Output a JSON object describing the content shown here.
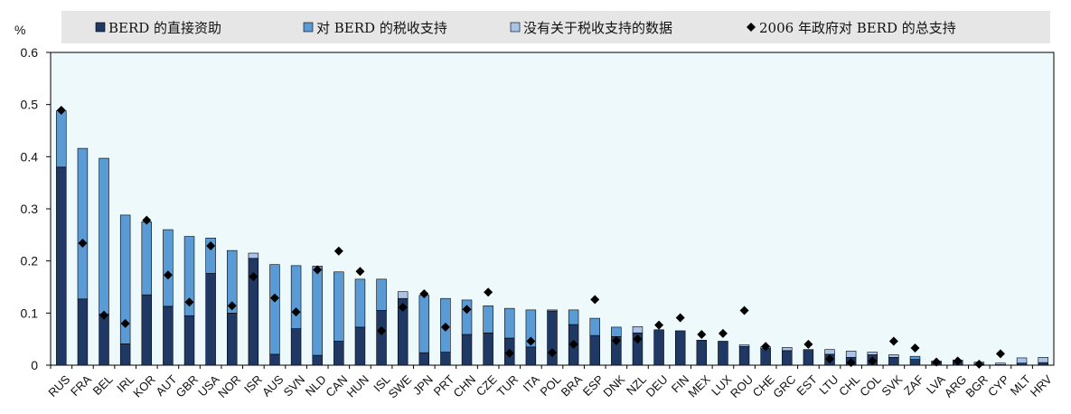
{
  "chart_data": {
    "type": "bar",
    "stacked": true,
    "y_unit_label": "%",
    "ylim": [
      0,
      0.6
    ],
    "yticks": [
      "0",
      "0.1",
      "0.2",
      "0.3",
      "0.4",
      "0.5",
      "0.6"
    ],
    "legend_position": "top",
    "grid": false,
    "colors": {
      "direct": "#1f3864",
      "tax": "#5b9bd5",
      "nodata": "#a9c4e8",
      "marker": "#000000",
      "plot_bg": "#eef9fb",
      "legend_bg": "#e6e6e6"
    },
    "legend": [
      {
        "key": "direct",
        "label": "BERD 的直接资助",
        "swatch": "bar"
      },
      {
        "key": "tax",
        "label": "对 BERD 的税收支持",
        "swatch": "bar"
      },
      {
        "key": "nodata",
        "label": "没有关于税收支持的数据",
        "swatch": "bar"
      },
      {
        "key": "total2006",
        "label": "2006 年政府对 BERD 的总支持",
        "swatch": "diamond"
      }
    ],
    "categories": [
      "RUS",
      "FRA",
      "BEL",
      "IRL",
      "KOR",
      "AUT",
      "GBR",
      "USA",
      "NOR",
      "ISR",
      "AUS",
      "SVN",
      "NLD",
      "CAN",
      "HUN",
      "ISL",
      "SWE",
      "JPN",
      "PRT",
      "CHN",
      "CZE",
      "TUR",
      "ITA",
      "POL",
      "BRA",
      "ESP",
      "DNK",
      "NZL",
      "DEU",
      "FIN",
      "MEX",
      "LUX",
      "ROU",
      "CHE",
      "GRC",
      "EST",
      "LTU",
      "CHL",
      "COL",
      "SVK",
      "ZAF",
      "LVA",
      "ARG",
      "BGR",
      "CYP",
      "MLT",
      "HRV"
    ],
    "series": [
      {
        "name": "BERD 的直接资助",
        "key": "direct",
        "values": [
          0.38,
          0.127,
          0.098,
          0.041,
          0.135,
          0.113,
          0.095,
          0.176,
          0.1,
          0.205,
          0.021,
          0.07,
          0.019,
          0.046,
          0.073,
          0.105,
          0.128,
          0.024,
          0.025,
          0.059,
          0.062,
          0.052,
          0.035,
          0.104,
          0.078,
          0.057,
          0.055,
          0.062,
          0.068,
          0.066,
          0.048,
          0.046,
          0.036,
          0.032,
          0.028,
          0.03,
          0.021,
          0.015,
          0.02,
          0.015,
          0.011,
          0.005,
          0.006,
          0.002,
          0.001,
          0.004,
          0.005
        ]
      },
      {
        "name": "对 BERD 的税收支持",
        "key": "tax",
        "values": [
          0.108,
          0.289,
          0.299,
          0.247,
          0.14,
          0.147,
          0.152,
          0.068,
          0.12,
          0,
          0.172,
          0.121,
          0.171,
          0.133,
          0.092,
          0.06,
          0,
          0.11,
          0.103,
          0.066,
          0.052,
          0.057,
          0.071,
          0,
          0.028,
          0.033,
          0.018,
          0,
          0,
          0,
          0,
          0,
          0,
          0,
          0,
          0,
          0,
          0,
          0,
          0,
          0.006,
          0,
          0,
          0,
          0,
          0,
          0
        ]
      },
      {
        "name": "没有关于税收支持的数据",
        "key": "nodata",
        "values": [
          0,
          0,
          0,
          0,
          0,
          0,
          0,
          0,
          0,
          0.01,
          0,
          0,
          0,
          0,
          0,
          0,
          0.013,
          0,
          0,
          0,
          0,
          0,
          0,
          0.002,
          0,
          0,
          0,
          0.012,
          0,
          0,
          0,
          0,
          0.003,
          0.003,
          0.006,
          0,
          0.009,
          0.012,
          0.005,
          0.005,
          0,
          0.003,
          0.004,
          0.004,
          0.003,
          0.01,
          0.01
        ]
      }
    ],
    "markers": {
      "name": "2006 年政府对 BERD 的总支持",
      "values": [
        0.489,
        0.234,
        0.096,
        0.08,
        0.278,
        0.173,
        0.121,
        0.229,
        0.114,
        0.17,
        0.129,
        0.102,
        0.183,
        0.219,
        0.18,
        0.066,
        0.111,
        0.137,
        0.073,
        0.107,
        0.14,
        0.023,
        0.046,
        0.024,
        0.04,
        0.126,
        0.047,
        0.05,
        0.077,
        0.091,
        0.059,
        0.061,
        0.105,
        0.036,
        null,
        0.04,
        0.012,
        0.005,
        0.008,
        0.046,
        0.033,
        0.006,
        0.008,
        0.002,
        0.022,
        null,
        null
      ]
    }
  }
}
